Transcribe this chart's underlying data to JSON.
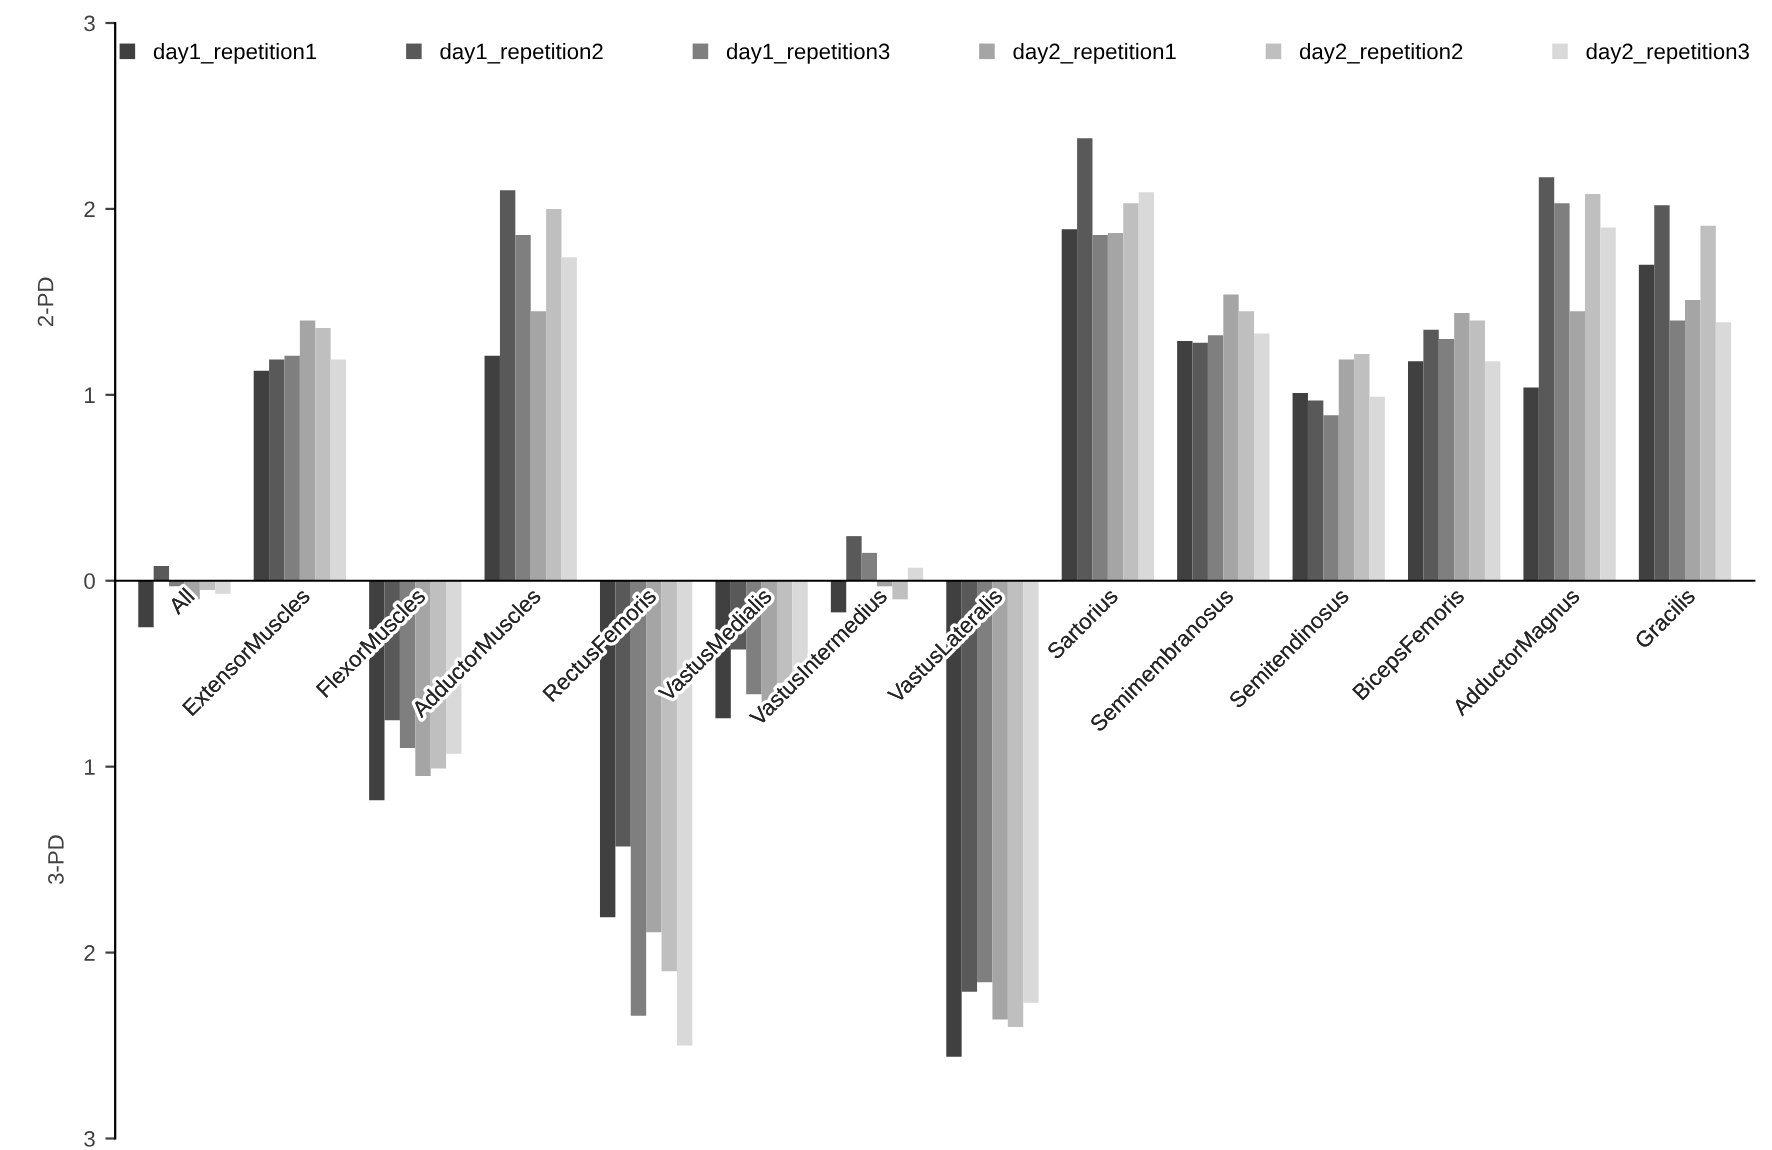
{
  "chart_data": {
    "type": "bar",
    "ylabel": "2-PD",
    "annotations": [
      "3-PD"
    ],
    "categories": [
      "All",
      "ExtensorMuscles",
      "FlexorMuscles",
      "AdductorMuscles",
      "RectusFemoris",
      "VastusMedialis",
      "VastusIntermedius",
      "VastusLateralis",
      "Sartorius",
      "Semimembranosus",
      "Semitendinosus",
      "BicepsFemoris",
      "AdductorMagnus",
      "Gracilis"
    ],
    "series": [
      {
        "name": "day1_repetition1",
        "color": "#404040",
        "values": [
          -0.25,
          1.13,
          -1.18,
          1.21,
          -1.81,
          -0.74,
          -0.17,
          -2.56,
          1.89,
          1.29,
          1.01,
          1.18,
          1.04,
          1.7
        ]
      },
      {
        "name": "day1_repetition2",
        "color": "#595959",
        "values": [
          0.08,
          1.19,
          -0.75,
          2.1,
          -1.43,
          -0.37,
          0.24,
          -2.21,
          2.38,
          1.28,
          0.97,
          1.35,
          2.17,
          2.02
        ]
      },
      {
        "name": "day1_repetition3",
        "color": "#7f7f7f",
        "values": [
          -0.03,
          1.21,
          -0.9,
          1.86,
          -2.34,
          -0.61,
          0.15,
          -2.16,
          1.86,
          1.32,
          0.89,
          1.3,
          2.03,
          1.4
        ]
      },
      {
        "name": "day2_repetition1",
        "color": "#a5a5a5",
        "values": [
          -0.1,
          1.4,
          -1.05,
          1.45,
          -1.89,
          -0.7,
          -0.03,
          -2.36,
          1.87,
          1.54,
          1.19,
          1.44,
          1.45,
          1.51
        ]
      },
      {
        "name": "day2_repetition2",
        "color": "#bfbfbf",
        "values": [
          -0.05,
          1.36,
          -1.01,
          2.0,
          -2.1,
          -0.55,
          -0.1,
          -2.4,
          2.03,
          1.45,
          1.22,
          1.4,
          2.08,
          1.91
        ]
      },
      {
        "name": "day2_repetition3",
        "color": "#d9d9d9",
        "values": [
          -0.07,
          1.19,
          -0.93,
          1.74,
          -2.5,
          -0.51,
          0.07,
          -2.27,
          2.09,
          1.33,
          0.99,
          1.18,
          1.9,
          1.39
        ]
      }
    ],
    "ylim": [
      -3,
      3
    ],
    "yticks": [
      {
        "value": -3,
        "label": "3"
      },
      {
        "value": -2,
        "label": "2"
      },
      {
        "value": -1,
        "label": "1"
      },
      0,
      1,
      2,
      3
    ],
    "grid": false,
    "legend": "top"
  }
}
